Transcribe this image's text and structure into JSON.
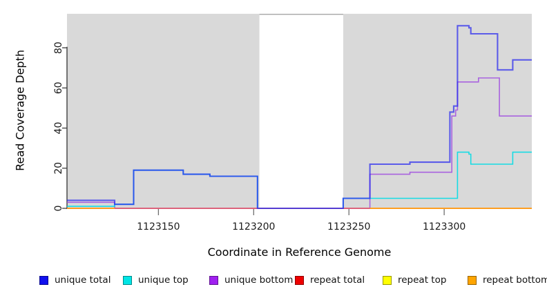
{
  "figure": {
    "background": "#ffffff",
    "plot_bg_shade": "#d9d9d9",
    "gap_top_line_color": "#ababab",
    "axis_line_color": "#3f3f3f",
    "tick_color": "#6e6e6e",
    "tick_label_color": "#1a1a1a"
  },
  "chart_data": {
    "type": "line",
    "subtype": "step",
    "title": "",
    "xlabel": "Coordinate in Reference Genome",
    "ylabel": "Read Coverage Depth",
    "xlim": [
      1123102,
      1123346
    ],
    "ylim": [
      0,
      97
    ],
    "x_ticks": [
      1123150,
      1123200,
      1123250,
      1123300
    ],
    "x_tick_labels": [
      "1123150",
      "1123200",
      "1123250",
      "1123300"
    ],
    "y_ticks": [
      0,
      20,
      40,
      60,
      80
    ],
    "y_tick_labels": [
      "0",
      "20",
      "40",
      "60",
      "80"
    ],
    "grid": false,
    "legend_position": "bottom",
    "shaded_x_regions": [
      [
        1123102,
        1123203
      ],
      [
        1123247,
        1123346
      ]
    ],
    "unshaded_gap": [
      1123203,
      1123247
    ],
    "series": [
      {
        "name": "unique total",
        "legend_color": "#1010EE",
        "line_color": "#2A2AEE",
        "line_opacity": 0.72,
        "line_width": 2.1,
        "segments": [
          [
            [
              1123102,
              4
            ],
            [
              1123127,
              2
            ],
            [
              1123137,
              19
            ],
            [
              1123163,
              17
            ],
            [
              1123177,
              16
            ],
            [
              1123202,
              0
            ],
            [
              1123247,
              5
            ],
            [
              1123261,
              22
            ],
            [
              1123282,
              23
            ],
            [
              1123303,
              48
            ],
            [
              1123305,
              51
            ],
            [
              1123307,
              91
            ],
            [
              1123313,
              90
            ],
            [
              1123314,
              87
            ],
            [
              1123328,
              69
            ],
            [
              1123336,
              74
            ],
            [
              1123346,
              74
            ]
          ]
        ]
      },
      {
        "name": "unique top",
        "legend_color": "#00E5E5",
        "line_color": "#00DCE4",
        "line_opacity": 0.9,
        "line_width": 1.6,
        "segments": [
          [
            [
              1123102,
              1
            ],
            [
              1123127,
              2
            ],
            [
              1123137,
              19
            ],
            [
              1123163,
              17
            ],
            [
              1123177,
              16
            ],
            [
              1123202,
              0
            ],
            [
              1123247,
              5
            ],
            [
              1123307,
              28
            ],
            [
              1123313,
              27
            ],
            [
              1123314,
              22
            ],
            [
              1123336,
              28
            ],
            [
              1123346,
              28
            ]
          ]
        ]
      },
      {
        "name": "unique bottom",
        "legend_color": "#A020F0",
        "line_color": "#9C45E0",
        "line_opacity": 0.8,
        "line_width": 1.6,
        "segments": [
          [
            [
              1123102,
              3
            ],
            [
              1123127,
              0
            ],
            [
              1123261,
              17
            ],
            [
              1123282,
              18
            ],
            [
              1123304,
              46
            ],
            [
              1123306,
              49
            ],
            [
              1123307,
              63
            ],
            [
              1123318,
              65
            ],
            [
              1123329,
              46
            ],
            [
              1123346,
              46
            ]
          ]
        ]
      },
      {
        "name": "repeat total",
        "legend_color": "#EE0000",
        "line_color": "#E04070",
        "line_opacity": 0.95,
        "line_width": 1.5,
        "segments": [
          [
            [
              1123102,
              0
            ],
            [
              1123346,
              0
            ]
          ]
        ]
      },
      {
        "name": "repeat top",
        "legend_color": "#FFFF00",
        "line_color": "#EEEE00",
        "line_opacity": 1,
        "line_width": 1.2,
        "segments": [
          [
            [
              1123102,
              0
            ],
            [
              1123346,
              0
            ]
          ]
        ]
      },
      {
        "name": "repeat bottom",
        "legend_color": "#FFA500",
        "line_color": "#FF9D20",
        "line_opacity": 1,
        "line_width": 2.1,
        "segments": [
          [
            [
              1123102,
              0
            ],
            [
              1123127,
              0
            ]
          ],
          [
            [
              1123261,
              0
            ],
            [
              1123346,
              0
            ]
          ]
        ]
      }
    ],
    "draw_order": [
      2,
      4,
      1,
      3,
      5,
      0
    ]
  }
}
